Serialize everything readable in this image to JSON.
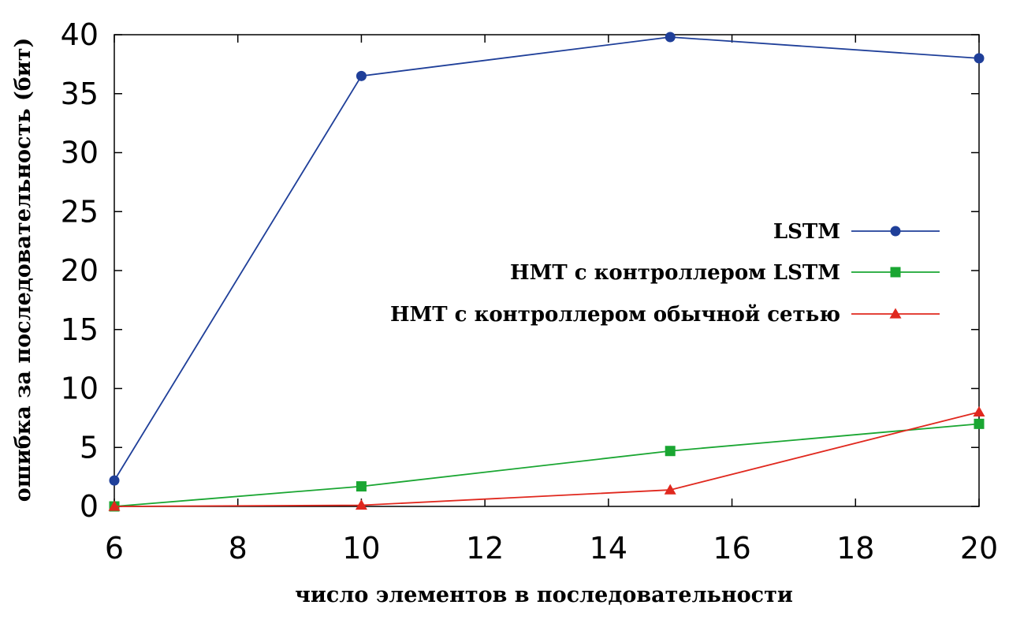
{
  "chart_data": {
    "type": "line",
    "title": "",
    "xlabel": "число элементов в последовательности",
    "ylabel": "ошибка за последовательность (бит)",
    "xlim": [
      6,
      20
    ],
    "ylim": [
      0,
      40
    ],
    "xticks": [
      6,
      8,
      10,
      12,
      14,
      16,
      18,
      20
    ],
    "yticks": [
      0,
      5,
      10,
      15,
      20,
      25,
      30,
      35,
      40
    ],
    "grid": false,
    "legend_position": "right",
    "series": [
      {
        "name": "LSTM",
        "color": "#1f3f99",
        "marker": "circle",
        "x": [
          6,
          10,
          15,
          20
        ],
        "y": [
          2.2,
          36.5,
          39.8,
          38.0
        ]
      },
      {
        "name": "НМТ с контроллером LSTM",
        "color": "#1aa632",
        "marker": "square",
        "x": [
          6,
          10,
          15,
          20
        ],
        "y": [
          0,
          1.7,
          4.7,
          7.0
        ]
      },
      {
        "name": "НМТ с контроллером обычной сетью",
        "color": "#e0281e",
        "marker": "triangle",
        "x": [
          6,
          10,
          15,
          20
        ],
        "y": [
          0,
          0.1,
          1.4,
          8.0
        ]
      }
    ]
  }
}
